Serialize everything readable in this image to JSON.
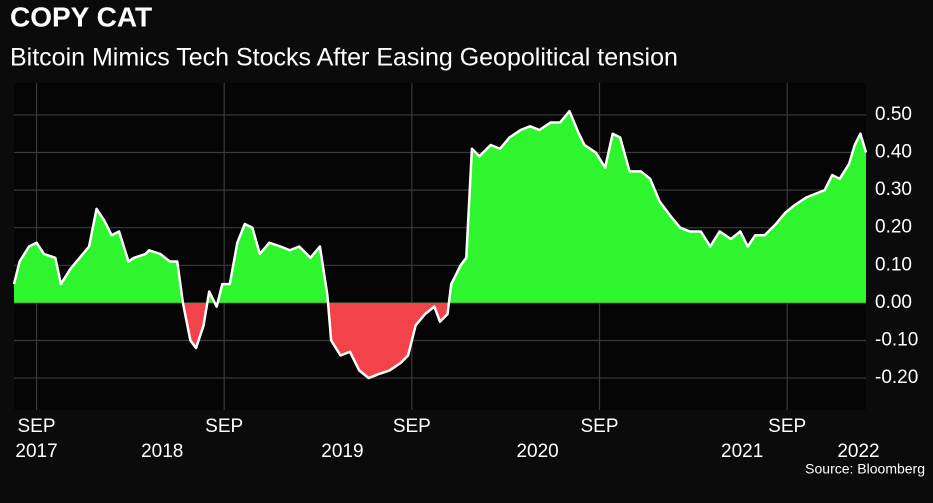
{
  "chart_data": {
    "type": "area",
    "title": "COPY CAT",
    "subtitle": "Bitcoin Mimics Tech Stocks After Easing Geopolitical tension",
    "source": "Source: Bloomberg",
    "x": [
      2017.55,
      2017.58,
      2017.63,
      2017.67,
      2017.71,
      2017.77,
      2017.8,
      2017.85,
      2017.9,
      2017.95,
      2017.99,
      2018.03,
      2018.07,
      2018.11,
      2018.16,
      2018.19,
      2018.25,
      2018.27,
      2018.33,
      2018.38,
      2018.42,
      2018.45,
      2018.49,
      2018.52,
      2018.56,
      2018.59,
      2018.63,
      2018.66,
      2018.7,
      2018.74,
      2018.78,
      2018.82,
      2018.86,
      2018.91,
      2018.97,
      2019.02,
      2019.07,
      2019.13,
      2019.18,
      2019.22,
      2019.24,
      2019.29,
      2019.34,
      2019.39,
      2019.44,
      2019.49,
      2019.55,
      2019.61,
      2019.65,
      2019.69,
      2019.74,
      2019.79,
      2019.82,
      2019.86,
      2019.88,
      2019.93,
      2019.96,
      2019.99,
      2020.03,
      2020.09,
      2020.14,
      2020.19,
      2020.25,
      2020.3,
      2020.35,
      2020.41,
      2020.46,
      2020.51,
      2020.56,
      2020.59,
      2020.65,
      2020.7,
      2020.74,
      2020.78,
      2020.83,
      2020.89,
      2020.94,
      2020.99,
      2021.05,
      2021.1,
      2021.15,
      2021.21,
      2021.26,
      2021.31,
      2021.37,
      2021.42,
      2021.46,
      2021.5,
      2021.55,
      2021.61,
      2021.66,
      2021.71,
      2021.77,
      2021.82,
      2021.87,
      2021.91,
      2021.95,
      2022.0,
      2022.03,
      2022.06,
      2022.09
    ],
    "series": [
      {
        "color": "#2ef52e",
        "negative_color": "#f2424a",
        "line_color": "#ffffff",
        "values": [
          0.05,
          0.11,
          0.15,
          0.16,
          0.13,
          0.12,
          0.05,
          0.09,
          0.12,
          0.15,
          0.25,
          0.22,
          0.18,
          0.19,
          0.11,
          0.12,
          0.13,
          0.14,
          0.13,
          0.11,
          0.11,
          0.0,
          -0.1,
          -0.12,
          -0.06,
          0.03,
          -0.01,
          0.05,
          0.05,
          0.16,
          0.21,
          0.2,
          0.13,
          0.16,
          0.15,
          0.14,
          0.15,
          0.12,
          0.15,
          0.02,
          -0.1,
          -0.14,
          -0.13,
          -0.18,
          -0.2,
          -0.19,
          -0.18,
          -0.16,
          -0.14,
          -0.06,
          -0.03,
          -0.01,
          -0.05,
          -0.03,
          0.05,
          0.1,
          0.12,
          0.41,
          0.39,
          0.42,
          0.41,
          0.44,
          0.46,
          0.47,
          0.46,
          0.48,
          0.48,
          0.51,
          0.45,
          0.42,
          0.4,
          0.36,
          0.45,
          0.44,
          0.35,
          0.35,
          0.33,
          0.27,
          0.23,
          0.2,
          0.19,
          0.19,
          0.15,
          0.19,
          0.17,
          0.19,
          0.15,
          0.18,
          0.18,
          0.21,
          0.24,
          0.26,
          0.28,
          0.29,
          0.3,
          0.34,
          0.33,
          0.37,
          0.42,
          0.45,
          0.4
        ]
      }
    ],
    "xlim": [
      2017.55,
      2022.09
    ],
    "xticks": [
      {
        "value": 2017.67,
        "label": "SEP"
      },
      {
        "value": 2018.67,
        "label": "SEP"
      },
      {
        "value": 2019.67,
        "label": "SEP"
      },
      {
        "value": 2020.67,
        "label": "SEP"
      },
      {
        "value": 2021.67,
        "label": "SEP"
      }
    ],
    "x_year_ticks": [
      {
        "value": 2017.67,
        "label": "2017"
      },
      {
        "value": 2018.34,
        "label": "2018"
      },
      {
        "value": 2019.3,
        "label": "2019"
      },
      {
        "value": 2020.34,
        "label": "2020"
      },
      {
        "value": 2021.43,
        "label": "2021"
      },
      {
        "value": 2022.05,
        "label": "2022"
      }
    ],
    "ylim": [
      -0.285,
      0.585
    ],
    "yticks": [
      {
        "value": 0.5,
        "label": "0.50"
      },
      {
        "value": 0.4,
        "label": "0.40"
      },
      {
        "value": 0.3,
        "label": "0.30"
      },
      {
        "value": 0.2,
        "label": "0.20"
      },
      {
        "value": 0.1,
        "label": "0.10"
      },
      {
        "value": 0,
        "label": "0.00"
      },
      {
        "value": -0.1,
        "label": "-0.10"
      },
      {
        "value": -0.2,
        "label": "-0.20"
      }
    ],
    "grid": true
  }
}
